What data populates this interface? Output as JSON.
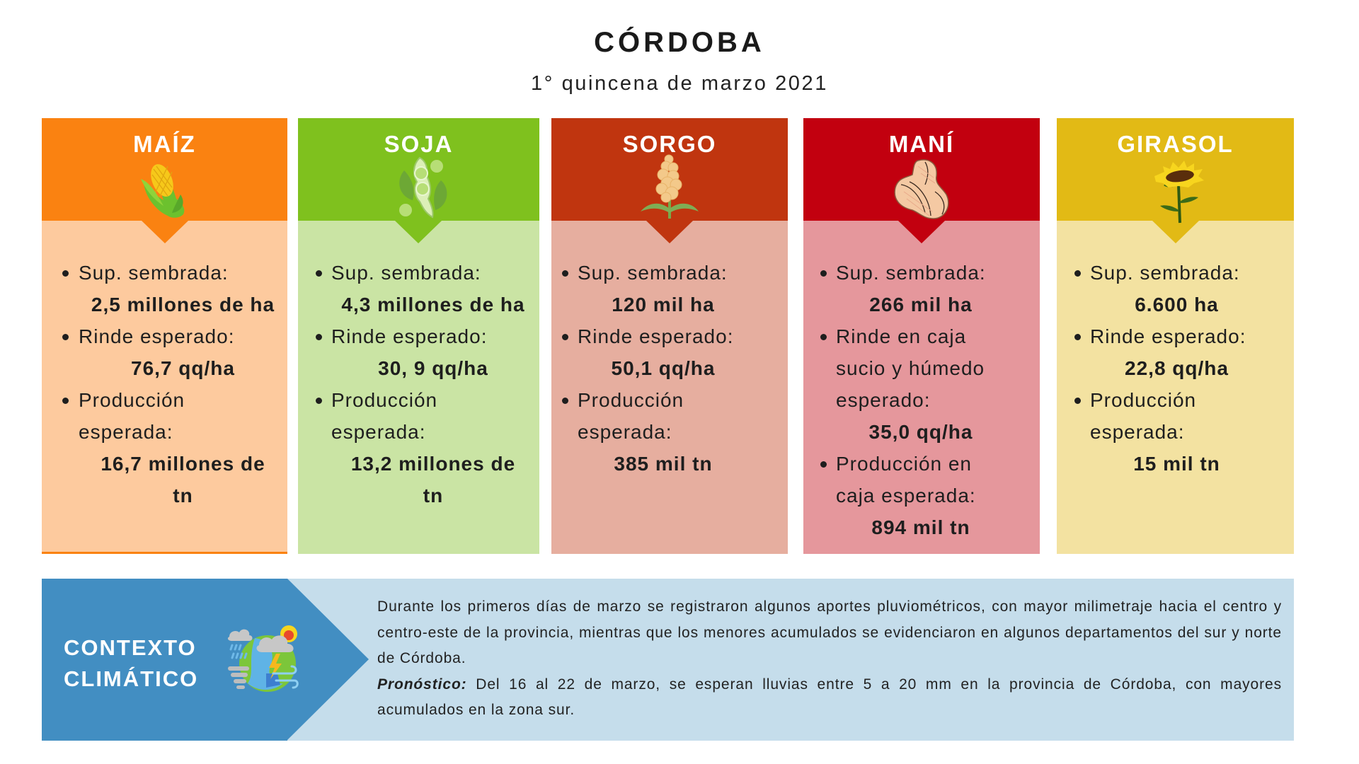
{
  "header": {
    "title": "CÓRDOBA",
    "subtitle": "1° quincena de marzo 2021"
  },
  "colors": {
    "maiz": {
      "head": "#fa8211",
      "body": "#fdca9e"
    },
    "soja": {
      "head": "#7fc11e",
      "body": "#cae4a4"
    },
    "sorgo": {
      "head": "#c0350f",
      "body": "#e6ae9f"
    },
    "mani": {
      "head": "#c2000f",
      "body": "#e5979c"
    },
    "girasol": {
      "head": "#e2ba15",
      "body": "#f3e2a1"
    },
    "clima": {
      "dark": "#428ec2",
      "light": "#c5ddeb"
    }
  },
  "crops": [
    {
      "name": "MAÍZ",
      "icon": "corn-icon",
      "rows": [
        {
          "type": "bullet",
          "text": "Sup. sembrada:"
        },
        {
          "type": "value",
          "text": "2,5 millones de ha"
        },
        {
          "type": "bullet",
          "text": "Rinde esperado:"
        },
        {
          "type": "value",
          "text": "76,7 qq/ha"
        },
        {
          "type": "bullet",
          "text": "Producción"
        },
        {
          "type": "cont",
          "text": "esperada:"
        },
        {
          "type": "value",
          "text": "16,7 millones de"
        },
        {
          "type": "value",
          "text": "tn"
        }
      ]
    },
    {
      "name": "SOJA",
      "icon": "soybean-icon",
      "rows": [
        {
          "type": "bullet",
          "text": "Sup. sembrada:"
        },
        {
          "type": "value",
          "text": "4,3 millones de ha"
        },
        {
          "type": "bullet",
          "text": "Rinde esperado:"
        },
        {
          "type": "value",
          "text": "30, 9 qq/ha"
        },
        {
          "type": "bullet",
          "text": "Producción"
        },
        {
          "type": "cont",
          "text": "esperada:"
        },
        {
          "type": "value",
          "text": "13,2 millones de"
        },
        {
          "type": "value",
          "text": "tn"
        }
      ]
    },
    {
      "name": "SORGO",
      "icon": "sorghum-icon",
      "rows": [
        {
          "type": "bullet",
          "text": "Sup. sembrada:"
        },
        {
          "type": "value",
          "text": "120 mil ha"
        },
        {
          "type": "bullet",
          "text": "Rinde esperado:"
        },
        {
          "type": "value",
          "text": "50,1 qq/ha"
        },
        {
          "type": "bullet",
          "text": "Producción"
        },
        {
          "type": "cont",
          "text": "esperada:"
        },
        {
          "type": "value",
          "text": "385 mil tn"
        }
      ]
    },
    {
      "name": "MANÍ",
      "icon": "peanut-icon",
      "rows": [
        {
          "type": "bullet",
          "text": "Sup. sembrada:"
        },
        {
          "type": "value",
          "text": "266 mil ha"
        },
        {
          "type": "bullet",
          "text": "Rinde en caja"
        },
        {
          "type": "cont",
          "text": "sucio y húmedo"
        },
        {
          "type": "cont",
          "text": "esperado:"
        },
        {
          "type": "value",
          "text": "35,0 qq/ha"
        },
        {
          "type": "bullet",
          "text": "Producción en"
        },
        {
          "type": "cont",
          "text": "caja esperada:"
        },
        {
          "type": "value",
          "text": "894 mil tn"
        }
      ]
    },
    {
      "name": "GIRASOL",
      "icon": "sunflower-icon",
      "rows": [
        {
          "type": "bullet",
          "text": "Sup. sembrada:"
        },
        {
          "type": "value",
          "text": "6.600 ha"
        },
        {
          "type": "bullet",
          "text": "Rinde esperado:"
        },
        {
          "type": "value",
          "text": "22,8 qq/ha"
        },
        {
          "type": "bullet",
          "text": "Producción"
        },
        {
          "type": "cont",
          "text": "esperada:"
        },
        {
          "type": "value",
          "text": "15 mil tn"
        }
      ]
    }
  ],
  "clima": {
    "title_line1": "CONTEXTO",
    "title_line2": "CLIMÁTICO",
    "icon": "weather-globe-icon",
    "paragraph": "Durante los primeros días de marzo se registraron algunos aportes pluviométricos, con mayor milimetraje hacia el centro y centro-este de la provincia, mientras que los menores acumulados se evidenciaron en  algunos departamentos del sur y norte de Córdoba.",
    "forecast_label": "Pronóstico:",
    "forecast_text": " Del 16 al 22 de marzo, se esperan lluvias entre 5 a 20 mm en la provincia de Córdoba, con mayores acumulados en la zona sur."
  }
}
